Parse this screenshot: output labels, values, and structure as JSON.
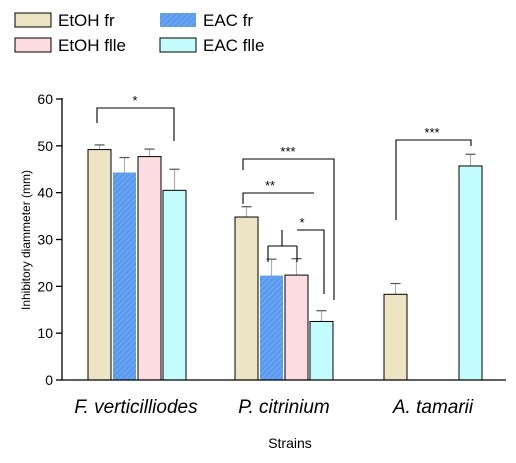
{
  "chart_data": {
    "type": "bar",
    "xlabel": "Strains",
    "ylabel": "Inhibitory diammeter (mm)",
    "ylim": [
      0,
      60
    ],
    "yticks": [
      0,
      10,
      20,
      30,
      40,
      50,
      60
    ],
    "grid": false,
    "legend_position": "top-left",
    "categories": [
      "F. verticilliodes",
      "P. citrinium",
      "A. tamarii"
    ],
    "series": [
      {
        "name": "EtOH fr",
        "color": "#ede4c4",
        "values": [
          49.2,
          34.8,
          18.3
        ],
        "errors": [
          1.0,
          2.2,
          2.3
        ]
      },
      {
        "name": "EAC fr",
        "color": "#5a9bef",
        "values": [
          44.3,
          22.3,
          0
        ],
        "errors": [
          3.2,
          3.5,
          0
        ]
      },
      {
        "name": "EtOH flle",
        "color": "#fddcdf",
        "values": [
          47.7,
          22.4,
          0
        ],
        "errors": [
          1.6,
          3.5,
          0
        ]
      },
      {
        "name": "EAC flle",
        "color": "#c3fcfc",
        "values": [
          40.5,
          12.5,
          45.7
        ],
        "errors": [
          4.5,
          2.3,
          2.5
        ]
      }
    ],
    "significance": [
      {
        "category": "F. verticilliodes",
        "label": "*"
      },
      {
        "category": "P. citrinium",
        "label": "***"
      },
      {
        "category": "P. citrinium",
        "label": "**"
      },
      {
        "category": "P. citrinium",
        "label": "*"
      },
      {
        "category": "A. tamarii",
        "label": "***"
      }
    ]
  }
}
